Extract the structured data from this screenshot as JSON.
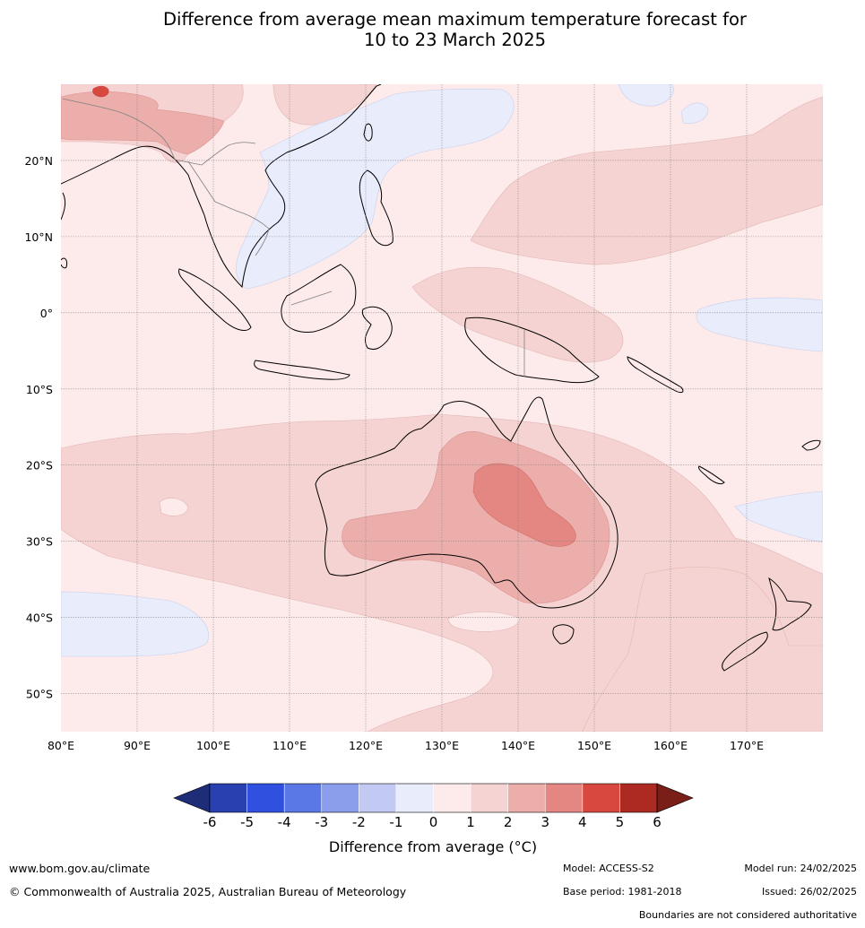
{
  "title": {
    "line1": "Difference from average mean maximum temperature forecast for",
    "line2": "10 to 23 March 2025"
  },
  "map": {
    "lat_labels": [
      "20°N",
      "10°N",
      "0°",
      "10°S",
      "20°S",
      "30°S",
      "40°S",
      "50°S"
    ],
    "lon_labels": [
      "80°E",
      "90°E",
      "100°E",
      "110°E",
      "120°E",
      "130°E",
      "140°E",
      "150°E",
      "160°E",
      "170°E"
    ],
    "lat_values": [
      20,
      10,
      0,
      -10,
      -20,
      -30,
      -40,
      -50
    ],
    "lon_values": [
      80,
      90,
      100,
      110,
      120,
      130,
      140,
      150,
      160,
      170
    ],
    "lon_range": [
      80,
      180
    ],
    "lat_range": [
      -55,
      30
    ]
  },
  "colorbar": {
    "tick_labels": [
      "-6",
      "-5",
      "-4",
      "-3",
      "-2",
      "-1",
      "0",
      "1",
      "2",
      "3",
      "4",
      "5",
      "6"
    ],
    "label": "Difference from average (°C)",
    "colors": {
      "below_min": "#1e2d78",
      "bins": [
        "#2840b0",
        "#3050e0",
        "#5a78e6",
        "#8a9eec",
        "#c2caf4",
        "#e8ecfb",
        "#fcebea",
        "#f5d3d2",
        "#ebaeab",
        "#e48681",
        "#d8483f",
        "#ac2a22"
      ],
      "above_max": "#7a1e18"
    }
  },
  "footer": {
    "website": "www.bom.gov.au/climate",
    "copyright": "© Commonwealth of Australia 2025, Australian Bureau of Meteorology",
    "model": "Model: ACCESS-S2",
    "base_period": "Base period: 1981-2018",
    "model_run": "Model run: 24/02/2025",
    "issued": "Issued: 26/02/2025",
    "disclaimer": "Boundaries are not considered authoritative"
  }
}
